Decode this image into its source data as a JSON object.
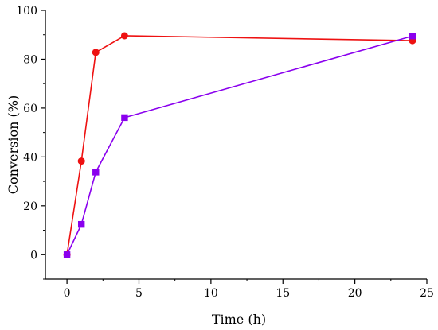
{
  "chart_data": {
    "type": "line",
    "xlabel": "Time (h)",
    "ylabel": "Conversion (%)",
    "xlim": [
      -1.5,
      25
    ],
    "ylim": [
      -10,
      100
    ],
    "x_ticks": [
      0,
      5,
      10,
      15,
      20,
      25
    ],
    "y_ticks": [
      0,
      20,
      40,
      60,
      80,
      100
    ],
    "grid": false,
    "series": [
      {
        "marker": "circle",
        "color": "#ee1111",
        "x": [
          0,
          1,
          2,
          4,
          24
        ],
        "y": [
          0,
          38.3,
          82.8,
          89.6,
          87.6
        ]
      },
      {
        "marker": "square",
        "color": "#8a00ee",
        "x": [
          0,
          1,
          2,
          4,
          24
        ],
        "y": [
          0,
          12.4,
          33.8,
          56.1,
          89.5
        ]
      }
    ]
  }
}
